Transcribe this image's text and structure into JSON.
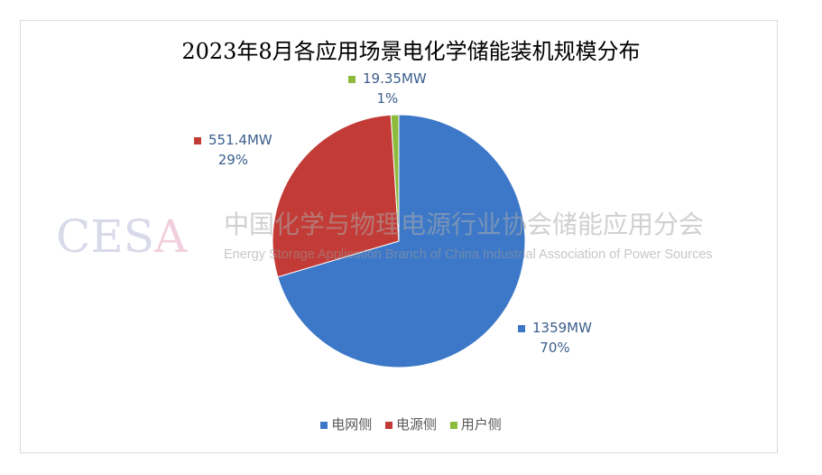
{
  "chart_data": {
    "type": "pie",
    "title": "2023年8月各应用场景电化学储能装机规模分布",
    "slices": [
      {
        "name": "电网侧",
        "value": 1359,
        "value_label": "1359MW",
        "percent_label": "70%",
        "color": "#3d78c8"
      },
      {
        "name": "电源侧",
        "value": 551.4,
        "value_label": "551.4MW",
        "percent_label": "29%",
        "color": "#c33b36"
      },
      {
        "name": "用户侧",
        "value": 19.35,
        "value_label": "19.35MW",
        "percent_label": "1%",
        "color": "#8dbb3c"
      }
    ],
    "legend_position": "bottom"
  },
  "watermark": {
    "logo": "CESA",
    "cn": "中国化学与物理电源行业协会储能应用分会",
    "en": "Energy Storage Application Branch of China Industrial Association of Power Sources"
  }
}
